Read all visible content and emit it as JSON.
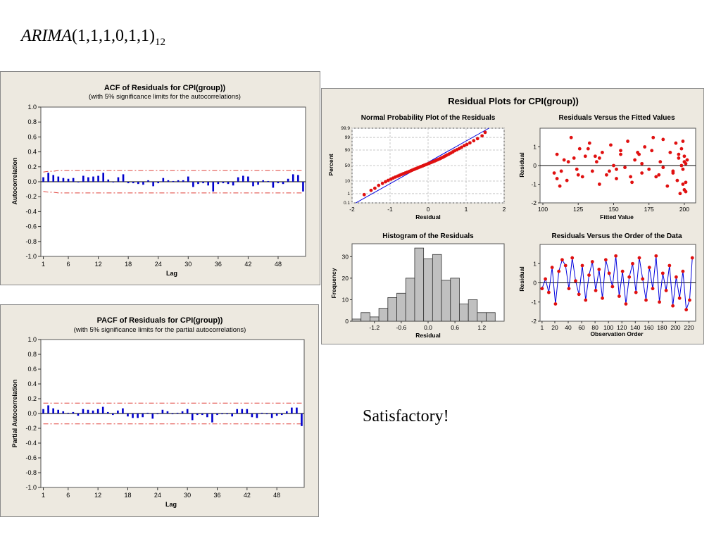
{
  "slide": {
    "heading_main": "ARIMA",
    "heading_params": "(1,1,1,0,1,1)",
    "heading_sub": "12",
    "note": "Satisfactory!"
  },
  "colors": {
    "panel_bg": "#ede9e0",
    "bar": "#0000cc",
    "limit_line": "#e0403a",
    "points": "#e01010",
    "fit_line": "#0000dd",
    "hist_fill": "#c0c0c0"
  },
  "acf": {
    "title": "ACF of Residuals for CPI(group))",
    "subtitle": "(with 5% significance limits for the autocorrelations)",
    "ylabel": "Autocorrelation",
    "xlabel": "Lag"
  },
  "pacf": {
    "title": "PACF of Residuals for CPI(group))",
    "subtitle": "(with 5% significance limits for the partial autocorrelations)",
    "ylabel": "Partial Autocorrelation",
    "xlabel": "Lag"
  },
  "residual": {
    "title": "Residual Plots for CPI(group))",
    "normal_title": "Normal Probability Plot of the Residuals",
    "normal_xlabel": "Residual",
    "normal_ylabel": "Percent",
    "fitted_title": "Residuals Versus the Fitted Values",
    "fitted_xlabel": "Fitted Value",
    "fitted_ylabel": "Residual",
    "hist_title": "Histogram of the Residuals",
    "hist_xlabel": "Residual",
    "hist_ylabel": "Frequency",
    "order_title": "Residuals Versus the Order of the Data",
    "order_xlabel": "Observation Order",
    "order_ylabel": "Residual"
  },
  "chart_data": [
    {
      "id": "acf",
      "type": "bar",
      "x": [
        1,
        2,
        3,
        4,
        5,
        6,
        7,
        8,
        9,
        10,
        11,
        12,
        13,
        14,
        15,
        16,
        17,
        18,
        19,
        20,
        21,
        22,
        23,
        24,
        25,
        26,
        27,
        28,
        29,
        30,
        31,
        32,
        33,
        34,
        35,
        36,
        37,
        38,
        39,
        40,
        41,
        42,
        43,
        44,
        45,
        46,
        47,
        48,
        49,
        50,
        51,
        52,
        53
      ],
      "values": [
        0.06,
        0.12,
        0.09,
        0.07,
        0.05,
        0.04,
        0.05,
        -0.01,
        0.08,
        0.06,
        0.07,
        0.08,
        0.12,
        0.03,
        -0.01,
        0.06,
        0.1,
        -0.02,
        -0.02,
        -0.03,
        -0.04,
        0.02,
        -0.06,
        -0.02,
        0.05,
        0.02,
        0.01,
        0.02,
        0.02,
        0.07,
        -0.07,
        -0.03,
        -0.02,
        -0.05,
        -0.13,
        -0.03,
        -0.02,
        -0.03,
        -0.05,
        0.06,
        0.08,
        0.07,
        -0.06,
        -0.04,
        0.02,
        0.01,
        -0.08,
        -0.02,
        -0.03,
        0.04,
        0.1,
        0.09,
        -0.13
      ],
      "upper_limit": [
        0.13,
        0.14,
        0.14,
        0.15,
        0.15,
        0.15,
        0.15,
        0.15,
        0.15,
        0.15,
        0.15,
        0.15,
        0.15,
        0.15,
        0.15,
        0.15,
        0.15,
        0.15,
        0.15,
        0.15,
        0.15,
        0.15,
        0.15,
        0.15,
        0.15,
        0.15,
        0.15,
        0.15,
        0.15,
        0.15,
        0.15,
        0.15,
        0.15,
        0.15,
        0.15,
        0.15,
        0.15,
        0.15,
        0.15,
        0.15,
        0.15,
        0.15,
        0.15,
        0.15,
        0.15,
        0.15,
        0.15,
        0.15,
        0.15,
        0.15,
        0.15,
        0.15,
        0.15
      ],
      "lower_limit": [
        -0.13,
        -0.14,
        -0.14,
        -0.15,
        -0.15,
        -0.15,
        -0.15,
        -0.15,
        -0.15,
        -0.15,
        -0.15,
        -0.15,
        -0.15,
        -0.15,
        -0.15,
        -0.15,
        -0.15,
        -0.15,
        -0.15,
        -0.15,
        -0.15,
        -0.15,
        -0.15,
        -0.15,
        -0.15,
        -0.15,
        -0.15,
        -0.15,
        -0.15,
        -0.15,
        -0.15,
        -0.15,
        -0.15,
        -0.15,
        -0.15,
        -0.15,
        -0.15,
        -0.15,
        -0.15,
        -0.15,
        -0.15,
        -0.15,
        -0.15,
        -0.15,
        -0.15,
        -0.15,
        -0.15,
        -0.15,
        -0.15,
        -0.15,
        -0.15,
        -0.15,
        -0.15
      ],
      "x_ticks": [
        1,
        6,
        12,
        18,
        24,
        30,
        36,
        42,
        48
      ],
      "y_ticks": [
        1.0,
        0.8,
        0.6,
        0.4,
        0.2,
        0.0,
        -0.2,
        -0.4,
        -0.6,
        -0.8,
        -1.0
      ],
      "ylim": [
        -1.0,
        1.0
      ],
      "xlim": [
        0.5,
        53.5
      ]
    },
    {
      "id": "pacf",
      "type": "bar",
      "x": [
        1,
        2,
        3,
        4,
        5,
        6,
        7,
        8,
        9,
        10,
        11,
        12,
        13,
        14,
        15,
        16,
        17,
        18,
        19,
        20,
        21,
        22,
        23,
        24,
        25,
        26,
        27,
        28,
        29,
        30,
        31,
        32,
        33,
        34,
        35,
        36,
        37,
        38,
        39,
        40,
        41,
        42,
        43,
        44,
        45,
        46,
        47,
        48,
        49,
        50,
        51,
        52,
        53
      ],
      "values": [
        0.06,
        0.11,
        0.07,
        0.05,
        0.03,
        0.01,
        0.02,
        -0.03,
        0.06,
        0.05,
        0.04,
        0.06,
        0.09,
        0.02,
        -0.02,
        0.04,
        0.07,
        -0.04,
        -0.06,
        -0.06,
        -0.05,
        0.01,
        -0.07,
        -0.01,
        0.05,
        0.03,
        -0.01,
        0.01,
        0.03,
        0.06,
        -0.09,
        -0.02,
        -0.02,
        -0.05,
        -0.12,
        -0.02,
        -0.01,
        -0.01,
        -0.04,
        0.06,
        0.06,
        0.06,
        -0.05,
        -0.06,
        0.01,
        -0.01,
        -0.06,
        -0.03,
        -0.02,
        0.03,
        0.08,
        0.08,
        -0.17
      ],
      "upper_limit": [
        0.14,
        0.14,
        0.14,
        0.14,
        0.14,
        0.14,
        0.14,
        0.14,
        0.14,
        0.14,
        0.14,
        0.14,
        0.14,
        0.14,
        0.14,
        0.14,
        0.14,
        0.14,
        0.14,
        0.14,
        0.14,
        0.14,
        0.14,
        0.14,
        0.14,
        0.14,
        0.14,
        0.14,
        0.14,
        0.14,
        0.14,
        0.14,
        0.14,
        0.14,
        0.14,
        0.14,
        0.14,
        0.14,
        0.14,
        0.14,
        0.14,
        0.14,
        0.14,
        0.14,
        0.14,
        0.14,
        0.14,
        0.14,
        0.14,
        0.14,
        0.14,
        0.14,
        0.14
      ],
      "lower_limit": [
        -0.14,
        -0.14,
        -0.14,
        -0.14,
        -0.14,
        -0.14,
        -0.14,
        -0.14,
        -0.14,
        -0.14,
        -0.14,
        -0.14,
        -0.14,
        -0.14,
        -0.14,
        -0.14,
        -0.14,
        -0.14,
        -0.14,
        -0.14,
        -0.14,
        -0.14,
        -0.14,
        -0.14,
        -0.14,
        -0.14,
        -0.14,
        -0.14,
        -0.14,
        -0.14,
        -0.14,
        -0.14,
        -0.14,
        -0.14,
        -0.14,
        -0.14,
        -0.14,
        -0.14,
        -0.14,
        -0.14,
        -0.14,
        -0.14,
        -0.14,
        -0.14,
        -0.14,
        -0.14,
        -0.14,
        -0.14,
        -0.14,
        -0.14,
        -0.14,
        -0.14,
        -0.14
      ],
      "x_ticks": [
        1,
        6,
        12,
        18,
        24,
        30,
        36,
        42,
        48
      ],
      "y_ticks": [
        1.0,
        0.8,
        0.6,
        0.4,
        0.2,
        0.0,
        -0.2,
        -0.4,
        -0.6,
        -0.8,
        -1.0
      ],
      "ylim": [
        -1.0,
        1.0
      ],
      "xlim": [
        0.5,
        53.5
      ]
    },
    {
      "id": "normal",
      "type": "scatter",
      "x": [
        -1.68,
        -1.5,
        -1.4,
        -1.3,
        -1.2,
        -1.12,
        -1.05,
        -0.98,
        -0.92,
        -0.86,
        -0.8,
        -0.75,
        -0.7,
        -0.65,
        -0.6,
        -0.55,
        -0.5,
        -0.46,
        -0.42,
        -0.38,
        -0.34,
        -0.3,
        -0.26,
        -0.22,
        -0.18,
        -0.14,
        -0.1,
        -0.06,
        -0.02,
        0.02,
        0.06,
        0.1,
        0.14,
        0.18,
        0.22,
        0.26,
        0.3,
        0.34,
        0.38,
        0.42,
        0.46,
        0.5,
        0.55,
        0.6,
        0.65,
        0.7,
        0.76,
        0.82,
        0.88,
        0.95,
        1.02,
        1.1,
        1.2,
        1.3,
        1.42,
        1.5
      ],
      "y": [
        0.8,
        2,
        3,
        5,
        7,
        9,
        11,
        13,
        15,
        17,
        19,
        21,
        23,
        25,
        27,
        29,
        31,
        33,
        35,
        37,
        39,
        41,
        43,
        45,
        47,
        49,
        51,
        53,
        55,
        57,
        59,
        61,
        63,
        65,
        67,
        69,
        71,
        73,
        75,
        77,
        79,
        81,
        83,
        85,
        87,
        89,
        90.5,
        92,
        93.5,
        95,
        96,
        97,
        98,
        98.7,
        99.3,
        99.7
      ],
      "fit_line": [
        [
          -1.9,
          0.1
        ],
        [
          1.6,
          99.9
        ]
      ],
      "x_ticks": [
        -2,
        -1,
        0,
        1,
        2
      ],
      "y_ticks": [
        0.1,
        1,
        10,
        50,
        90,
        99,
        99.9
      ],
      "y_tick_labels": [
        "0.1",
        "1",
        "10",
        "50",
        "90",
        "99",
        "99.9"
      ],
      "y_scale": "normal probability",
      "xlim": [
        -2,
        2
      ],
      "ylim": [
        0.1,
        99.9
      ]
    },
    {
      "id": "fitted",
      "type": "scatter",
      "x": [
        108,
        110,
        112,
        115,
        117,
        120,
        122,
        124,
        126,
        128,
        130,
        133,
        135,
        138,
        140,
        142,
        145,
        148,
        150,
        152,
        155,
        158,
        160,
        163,
        165,
        168,
        170,
        172,
        175,
        178,
        180,
        183,
        185,
        188,
        190,
        192,
        194,
        195,
        196,
        197,
        198,
        199,
        199,
        200,
        200,
        201,
        201,
        201,
        202,
        110,
        118,
        125,
        132,
        140,
        147,
        155,
        162,
        170,
        177,
        185,
        192,
        196,
        199,
        200,
        113,
        137,
        152,
        167,
        182,
        198
      ],
      "y": [
        -0.4,
        0.6,
        -1.1,
        0.3,
        -0.8,
        1.5,
        0.4,
        -0.2,
        0.9,
        -0.6,
        0.5,
        1.2,
        -0.3,
        0.2,
        -1.0,
        0.7,
        -0.5,
        1.1,
        0.0,
        -0.7,
        0.8,
        -0.1,
        1.3,
        -0.9,
        0.3,
        0.6,
        -0.4,
        1.0,
        -0.2,
        1.5,
        -0.6,
        0.2,
        1.4,
        -1.1,
        0.7,
        -0.3,
        1.2,
        -0.8,
        0.4,
        -1.5,
        0.9,
        -0.2,
        1.3,
        -1.3,
        0.5,
        -0.9,
        0.1,
        -1.4,
        0.3,
        -0.7,
        0.2,
        -0.5,
        0.9,
        0.4,
        -0.3,
        0.6,
        -0.6,
        0.1,
        0.8,
        -0.1,
        -0.4,
        0.6,
        -1.0,
        0.2,
        -0.3,
        0.5,
        -0.2,
        0.7,
        -0.5,
        0.0
      ],
      "x_ticks": [
        100,
        125,
        150,
        175,
        200
      ],
      "y_ticks": [
        1,
        0,
        -1,
        -2
      ],
      "xlim": [
        98,
        208
      ],
      "ylim": [
        -2,
        2
      ],
      "reference_line": 0
    },
    {
      "id": "histogram",
      "type": "bar",
      "categories": [
        -1.6,
        -1.4,
        -1.2,
        -1.0,
        -0.8,
        -0.6,
        -0.4,
        -0.2,
        0.0,
        0.2,
        0.4,
        0.6,
        0.8,
        1.0,
        1.2,
        1.4
      ],
      "values": [
        1,
        4,
        2,
        6,
        11,
        13,
        20,
        34,
        29,
        31,
        19,
        20,
        8,
        10,
        4,
        4
      ],
      "bin_width": 0.2,
      "x_ticks": [
        -1.2,
        -0.6,
        0.0,
        0.6,
        1.2
      ],
      "x_tick_labels": [
        "-1.2",
        "-0.6",
        "0.0",
        "0.6",
        "1.2"
      ],
      "y_ticks": [
        0,
        10,
        20,
        30
      ],
      "xlim": [
        -1.7,
        1.7
      ],
      "ylim": [
        0,
        36
      ]
    },
    {
      "id": "order",
      "type": "line",
      "x": [
        1,
        6,
        11,
        16,
        21,
        26,
        31,
        36,
        41,
        46,
        51,
        56,
        61,
        66,
        71,
        76,
        81,
        86,
        91,
        96,
        101,
        106,
        111,
        116,
        121,
        126,
        131,
        136,
        141,
        146,
        151,
        156,
        161,
        166,
        171,
        176,
        181,
        186,
        191,
        196,
        201,
        206,
        211,
        216,
        221,
        225
      ],
      "y": [
        -0.3,
        0.2,
        -0.5,
        0.8,
        -1.1,
        0.6,
        1.2,
        0.9,
        -0.3,
        1.3,
        0.1,
        -0.6,
        0.9,
        -0.9,
        0.4,
        1.1,
        -0.4,
        0.7,
        -0.8,
        1.2,
        0.5,
        -0.2,
        1.4,
        -0.7,
        0.6,
        -1.1,
        0.3,
        1.0,
        -0.5,
        1.3,
        0.2,
        -0.9,
        0.8,
        -0.3,
        1.4,
        -1.0,
        0.5,
        -0.4,
        0.9,
        -1.2,
        0.3,
        -0.8,
        0.6,
        -1.4,
        -0.9,
        1.3
      ],
      "x_ticks": [
        1,
        20,
        40,
        60,
        80,
        100,
        120,
        140,
        160,
        180,
        200,
        220
      ],
      "y_ticks": [
        1,
        0,
        -1,
        -2
      ],
      "xlim": [
        -2,
        230
      ],
      "ylim": [
        -2,
        2
      ],
      "reference_line": 0
    }
  ]
}
